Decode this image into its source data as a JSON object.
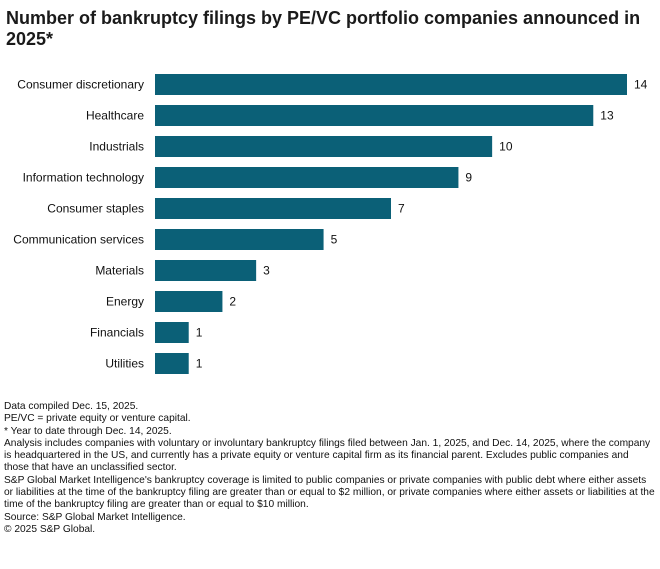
{
  "title": "Number of bankruptcy filings by PE/VC portfolio companies announced in 2025*",
  "chart_data": {
    "type": "bar",
    "orientation": "horizontal",
    "title": "Number of bankruptcy filings by PE/VC portfolio companies announced in 2025*",
    "categories": [
      "Consumer discretionary",
      "Healthcare",
      "Industrials",
      "Information technology",
      "Consumer staples",
      "Communication services",
      "Materials",
      "Energy",
      "Financials",
      "Utilities"
    ],
    "values": [
      14,
      13,
      10,
      9,
      7,
      5,
      3,
      2,
      1,
      1
    ],
    "xlim": [
      0,
      14
    ],
    "xlabel": "",
    "ylabel": "",
    "grid": false,
    "bar_color": "#0b6077"
  },
  "notes": [
    "Data compiled Dec. 15, 2025.",
    "PE/VC = private equity or venture capital.",
    "* Year to date through Dec. 14, 2025.",
    "Analysis includes companies with voluntary or involuntary bankruptcy filings filed between Jan. 1, 2025, and Dec. 14, 2025, where the company is headquartered in the US, and currently has a private equity or venture capital firm as its financial parent. Excludes public companies and those that have an unclassified sector.",
    "S&P Global Market Intelligence's bankruptcy coverage is limited to public companies or private companies with public debt where either assets or liabilities at the time of the bankruptcy filing are greater than or equal to $2 million, or private companies where either assets or liabilities at the time of the bankruptcy filing are greater than or equal to $10 million.",
    "Source: S&P Global Market Intelligence.",
    "© 2025 S&P Global."
  ]
}
